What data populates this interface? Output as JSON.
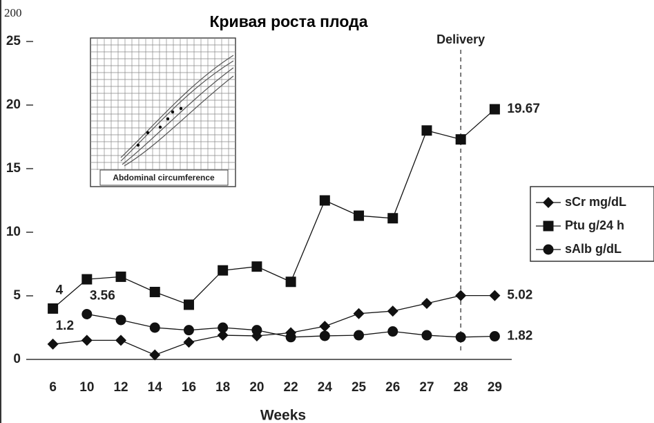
{
  "chart_data": {
    "type": "line",
    "title": "Кривая роста плода",
    "corner_text": "200",
    "x_label": "Weeks",
    "categories": [
      6,
      10,
      12,
      14,
      16,
      18,
      20,
      22,
      24,
      25,
      26,
      27,
      28,
      29
    ],
    "ylim": [
      0,
      25
    ],
    "yticks": [
      0,
      5,
      10,
      15,
      20,
      25
    ],
    "legend": "right",
    "vline": {
      "x": 28,
      "label": "Delivery"
    },
    "inset_label": "Abdominal circumference",
    "series": [
      {
        "name": "sCr mg/dL",
        "color": "#111111",
        "marker": "diamond",
        "values": [
          1.2,
          1.5,
          1.5,
          0.35,
          1.35,
          1.9,
          1.85,
          2.1,
          2.6,
          3.6,
          3.8,
          4.4,
          5.02,
          5.02
        ],
        "value_labels": [
          "1.2",
          null,
          null,
          null,
          null,
          null,
          null,
          null,
          null,
          null,
          null,
          null,
          null,
          "5.02"
        ]
      },
      {
        "name": "Ptu g/24 h",
        "color": "#111111",
        "marker": "square",
        "values": [
          4,
          6.3,
          6.5,
          5.3,
          4.3,
          7.0,
          7.3,
          6.1,
          12.5,
          11.3,
          11.1,
          18.0,
          17.3,
          19.67
        ],
        "value_labels": [
          "4",
          null,
          null,
          null,
          null,
          null,
          null,
          null,
          null,
          null,
          null,
          null,
          null,
          "19.67"
        ]
      },
      {
        "name": "sAlb g/dL",
        "color": "#111111",
        "marker": "circle",
        "values": [
          null,
          3.56,
          3.1,
          2.5,
          2.3,
          2.5,
          2.3,
          1.75,
          1.85,
          1.9,
          2.2,
          1.9,
          1.75,
          1.82
        ],
        "value_labels": [
          null,
          "3.56",
          null,
          null,
          null,
          null,
          null,
          null,
          null,
          null,
          null,
          null,
          null,
          "1.82"
        ]
      }
    ]
  }
}
